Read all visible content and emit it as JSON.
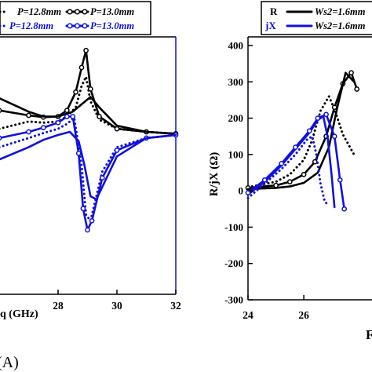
{
  "chart_data": [
    {
      "panel_label": "(A)",
      "type": "line",
      "xlabel": "q (GHz)",
      "xlim": [
        26,
        32
      ],
      "ylim": [
        -2.6,
        1.6
      ],
      "x_ticks": [
        "28",
        "30",
        "32"
      ],
      "legend": {
        "row1": [
          "P=12.8mm",
          "P=13.0mm"
        ],
        "row2": [
          "P=12.8mm",
          "P=13.0mm"
        ]
      },
      "colors": {
        "black": "#000000",
        "blue": "#1010e0",
        "axis_right": "#1010e0"
      },
      "series": [
        {
          "color": "black",
          "style": "dotted",
          "x": [
            26,
            27,
            27.5,
            28,
            28.3,
            28.6,
            28.8,
            28.95,
            29.1,
            29.4,
            30,
            31,
            32
          ],
          "y": [
            0.1,
            0.22,
            0.2,
            0.22,
            0.3,
            0.45,
            0.8,
            0.95,
            0.55,
            0.25,
            0.1,
            0.05,
            0.02
          ]
        },
        {
          "color": "black",
          "style": "line-circles",
          "x": [
            26,
            27,
            27.5,
            28,
            28.3,
            28.6,
            28.8,
            28.95,
            29.1,
            29.4,
            30,
            31,
            32
          ],
          "y": [
            0.4,
            0.32,
            0.29,
            0.3,
            0.4,
            0.7,
            1.1,
            1.38,
            0.75,
            0.3,
            0.1,
            0.05,
            0.02
          ]
        },
        {
          "color": "black",
          "style": "solid",
          "x": [
            26,
            27,
            27.5,
            28,
            28.5,
            28.8,
            29.1,
            29.4,
            30,
            31,
            32
          ],
          "y": [
            0.6,
            0.38,
            0.3,
            0.3,
            0.38,
            0.5,
            0.62,
            0.45,
            0.15,
            0.05,
            0.02
          ]
        },
        {
          "color": "blue",
          "style": "dotted",
          "x": [
            26,
            27,
            27.5,
            28,
            28.3,
            28.55,
            28.8,
            28.95,
            29.1,
            29.5,
            30,
            31,
            32
          ],
          "y": [
            -0.2,
            -0.05,
            0.03,
            0.1,
            0.18,
            0.28,
            -0.5,
            -1.3,
            -1.4,
            -0.6,
            -0.2,
            -0.05,
            0.0
          ]
        },
        {
          "color": "blue",
          "style": "line-circles",
          "x": [
            26,
            27,
            27.5,
            28,
            28.3,
            28.5,
            28.7,
            28.85,
            29.0,
            29.15,
            29.5,
            30,
            31,
            32
          ],
          "y": [
            -0.05,
            0.05,
            0.12,
            0.2,
            0.3,
            0.3,
            -0.3,
            -1.2,
            -1.55,
            -1.4,
            -0.7,
            -0.25,
            -0.05,
            0.0
          ]
        },
        {
          "color": "blue",
          "style": "solid",
          "x": [
            26,
            27,
            27.5,
            28,
            28.4,
            28.7,
            28.9,
            29.1,
            29.3,
            29.6,
            30,
            31,
            32
          ],
          "y": [
            -0.4,
            -0.2,
            -0.08,
            0.0,
            0.05,
            -0.1,
            -0.5,
            -1.0,
            -1.05,
            -0.75,
            -0.35,
            -0.05,
            0.0
          ]
        }
      ]
    },
    {
      "type": "line",
      "ylabel": "R/jX (Ω)",
      "xlim": [
        24,
        28.5
      ],
      "ylim": [
        -300,
        400
      ],
      "x_ticks": [
        24,
        26
      ],
      "y_ticks": [
        400,
        300,
        200,
        100,
        0,
        -100,
        -200,
        -300
      ],
      "xlabel_fragment": "F",
      "legend": {
        "row1_tag": "R",
        "row1_text": "Ws2=1.6mm",
        "row2_tag": "jX",
        "row2_text": "Ws2=1.6mm"
      },
      "colors": {
        "black": "#000000",
        "blue": "#1010e0"
      },
      "series": [
        {
          "color": "black",
          "style": "dotted",
          "x": [
            24,
            25,
            25.5,
            26,
            26.3,
            26.6,
            26.9,
            27.1,
            27.4,
            27.8
          ],
          "y": [
            10,
            25,
            45,
            85,
            140,
            220,
            260,
            225,
            155,
            100
          ]
        },
        {
          "color": "black",
          "style": "line-circles",
          "x": [
            24,
            25,
            25.5,
            26,
            26.4,
            26.8,
            27.1,
            27.4,
            27.7,
            27.9
          ],
          "y": [
            8,
            15,
            25,
            45,
            80,
            150,
            230,
            295,
            325,
            280
          ]
        },
        {
          "color": "black",
          "style": "solid",
          "x": [
            24,
            25,
            25.5,
            26,
            26.5,
            26.9,
            27.2,
            27.5,
            27.8
          ],
          "y": [
            5,
            8,
            12,
            22,
            50,
            120,
            230,
            325,
            300
          ]
        },
        {
          "color": "blue",
          "style": "dotted",
          "x": [
            24,
            24.6,
            25.2,
            25.7,
            26.1,
            26.3,
            26.45,
            26.6,
            26.75,
            26.9
          ],
          "y": [
            -20,
            20,
            60,
            100,
            140,
            150,
            100,
            20,
            -30,
            -40
          ]
        },
        {
          "color": "blue",
          "style": "solid",
          "x": [
            24,
            24.6,
            25.2,
            25.7,
            26.2,
            26.5,
            26.7,
            26.85,
            27.0,
            27.1
          ],
          "y": [
            -10,
            25,
            70,
            115,
            160,
            195,
            205,
            150,
            40,
            -45
          ]
        },
        {
          "color": "blue",
          "style": "line-circles",
          "x": [
            24,
            24.6,
            25.2,
            25.7,
            26.2,
            26.5,
            26.8,
            27.1,
            27.3,
            27.45
          ],
          "y": [
            -5,
            30,
            75,
            120,
            165,
            200,
            210,
            150,
            30,
            -50
          ]
        }
      ]
    }
  ]
}
